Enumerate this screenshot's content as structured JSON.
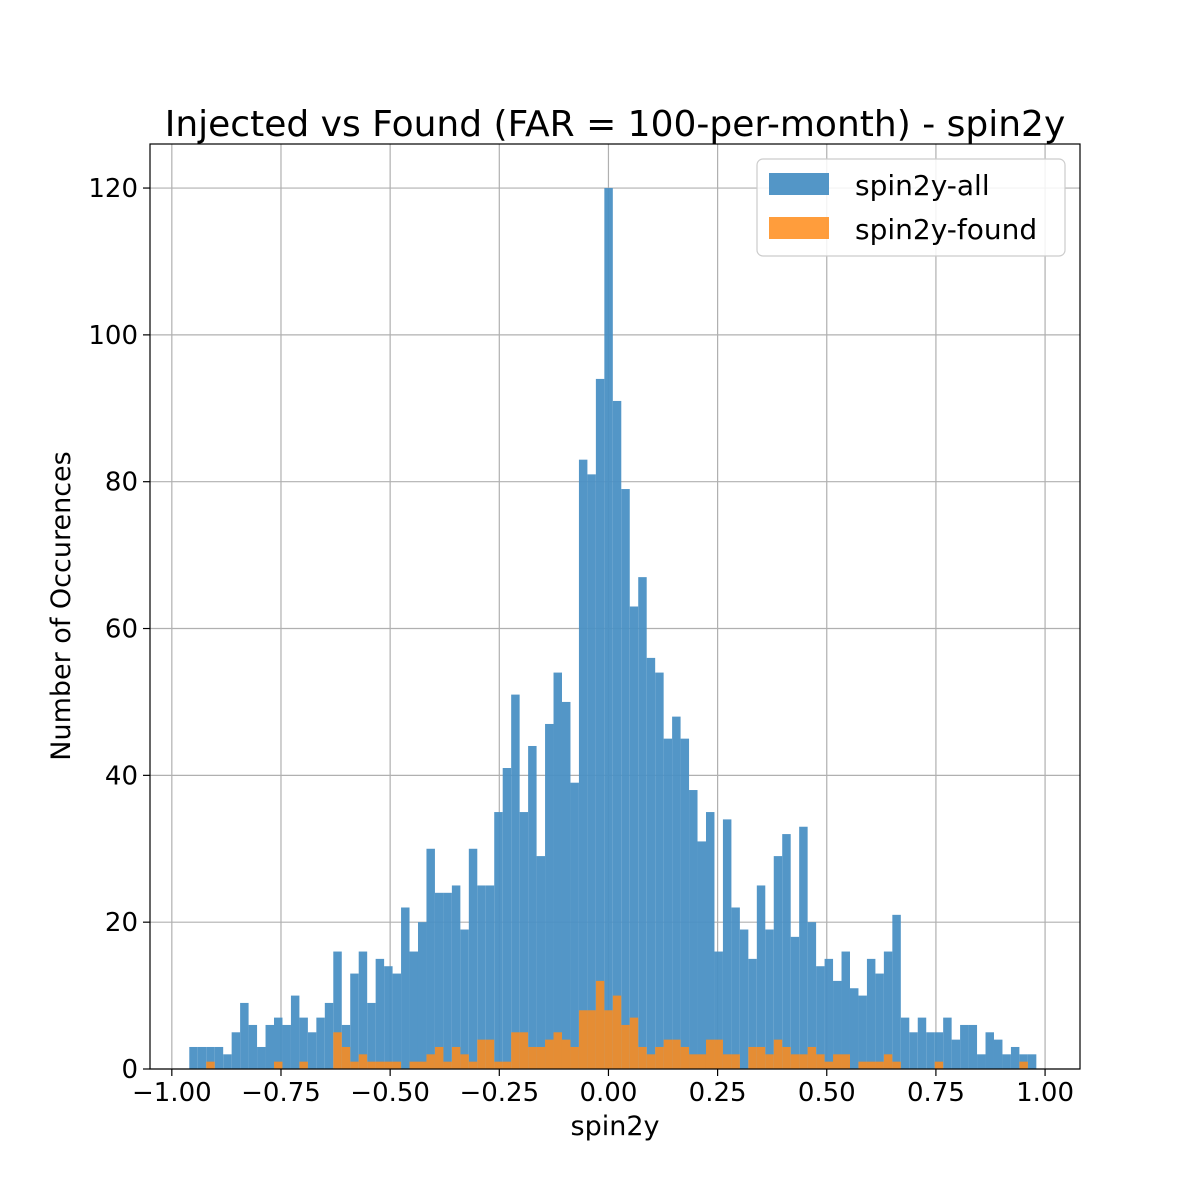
{
  "chart_data": {
    "type": "bar",
    "title": "Injected vs Found (FAR = 100-per-month) - spin2y",
    "xlabel": "spin2y",
    "ylabel": "Number of Occurences",
    "xlim": [
      -1.05,
      1.08
    ],
    "ylim": [
      0,
      126
    ],
    "grid": true,
    "legend_position": "top-right",
    "x_ticks": [
      -1.0,
      -0.75,
      -0.5,
      -0.25,
      0.0,
      0.25,
      0.5,
      0.75,
      1.0
    ],
    "x_tick_labels": [
      "−1.00",
      "−0.75",
      "−0.50",
      "−0.25",
      "0.00",
      "0.25",
      "0.50",
      "0.75",
      "1.00"
    ],
    "y_ticks": [
      0,
      20,
      40,
      60,
      80,
      100,
      120
    ],
    "y_tick_labels": [
      "0",
      "20",
      "40",
      "60",
      "80",
      "100",
      "120"
    ],
    "bins": {
      "start": -0.96,
      "width": 0.0194,
      "count": 100
    },
    "series": [
      {
        "name": "spin2y-all",
        "color": "#4a90c4",
        "values": [
          3,
          3,
          3,
          3,
          2,
          5,
          9,
          6,
          3,
          6,
          7,
          6,
          10,
          7,
          5,
          7,
          9,
          16,
          6,
          13,
          16,
          9,
          15,
          14,
          13,
          22,
          16,
          20,
          30,
          24,
          24,
          25,
          19,
          30,
          25,
          25,
          35,
          41,
          51,
          35,
          44,
          29,
          47,
          54,
          50,
          39,
          83,
          81,
          94,
          120,
          91,
          79,
          63,
          67,
          56,
          54,
          45,
          48,
          45,
          38,
          31,
          35,
          16,
          34,
          22,
          19,
          15,
          25,
          19,
          29,
          32,
          18,
          33,
          20,
          14,
          15,
          12,
          16,
          11,
          10,
          15,
          13,
          16,
          21,
          7,
          5,
          7,
          5,
          5,
          7,
          4,
          6,
          6,
          2,
          5,
          4,
          2,
          3,
          2,
          2
        ],
        "opacity": 0.95
      },
      {
        "name": "spin2y-found",
        "color": "#ff8c1a",
        "values": [
          0,
          0,
          1,
          0,
          0,
          0,
          0,
          0,
          0,
          0,
          1,
          0,
          0,
          1,
          0,
          0,
          0,
          5,
          3,
          1,
          2,
          1,
          1,
          1,
          1,
          0,
          1,
          1,
          2,
          3,
          1,
          3,
          2,
          1,
          4,
          4,
          1,
          1,
          5,
          5,
          3,
          3,
          4,
          5,
          4,
          3,
          8,
          8,
          12,
          8,
          10,
          6,
          7,
          3,
          2,
          3,
          4,
          4,
          3,
          2,
          2,
          4,
          4,
          2,
          2,
          0,
          3,
          3,
          2,
          4,
          3,
          2,
          2,
          3,
          2,
          1,
          2,
          2,
          0,
          1,
          1,
          1,
          2,
          1,
          0,
          0,
          0,
          0,
          1,
          0,
          0,
          0,
          0,
          0,
          0,
          0,
          0,
          0,
          1,
          0
        ],
        "opacity": 0.85
      }
    ]
  }
}
